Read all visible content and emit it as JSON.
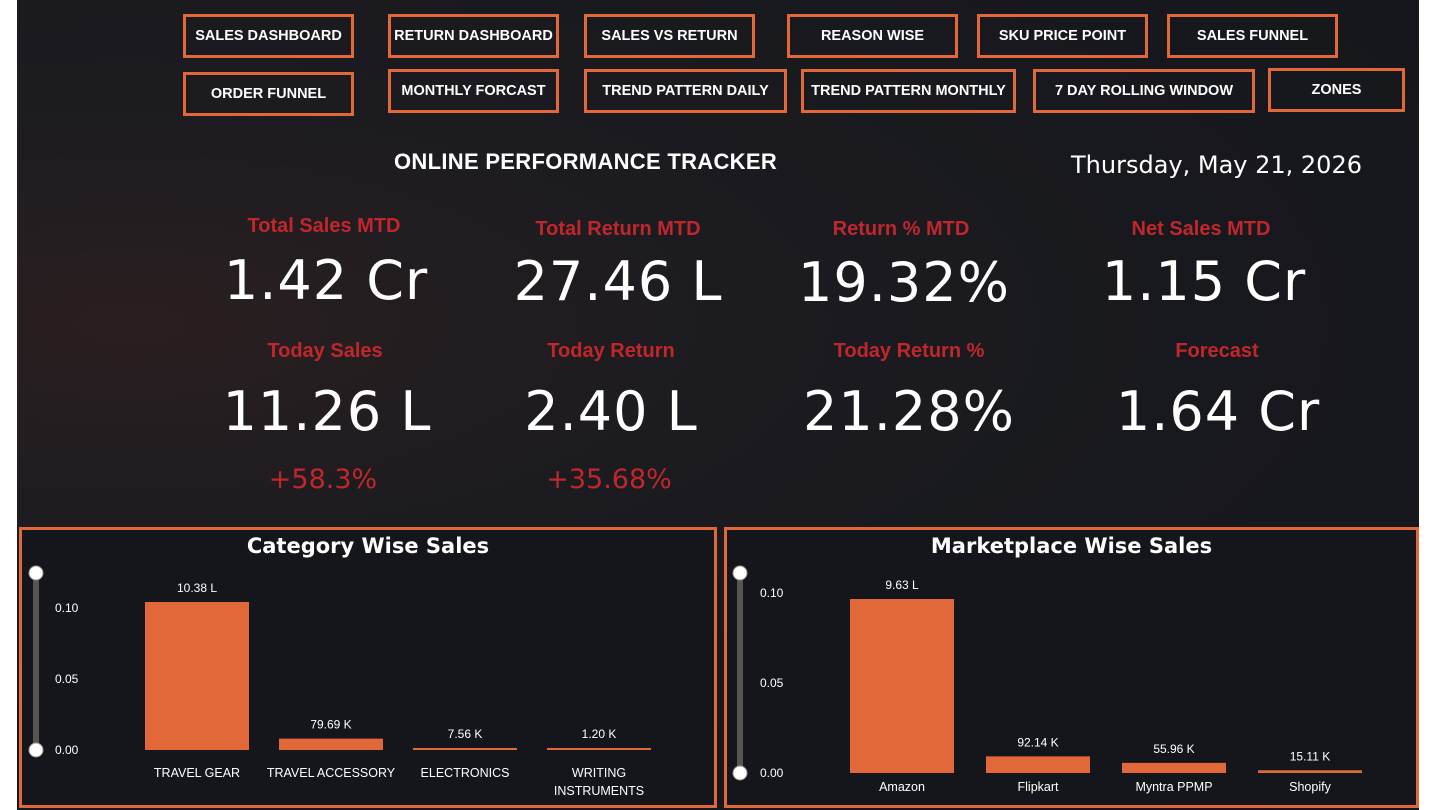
{
  "nav": {
    "row1": [
      "SALES DASHBOARD",
      "RETURN DASHBOARD",
      "SALES VS RETURN",
      "REASON WISE",
      "SKU PRICE POINT",
      "SALES FUNNEL"
    ],
    "row2": [
      "ORDER FUNNEL",
      "MONTHLY FORCAST",
      "TREND PATTERN DAILY",
      "TREND PATTERN MONTHLY",
      "7 DAY ROLLING WINDOW",
      "ZONES"
    ]
  },
  "header": {
    "title": "ONLINE PERFORMANCE TRACKER",
    "date": "Thursday, May 21, 2026"
  },
  "kpis": {
    "total_sales_mtd": {
      "label": "Total Sales MTD",
      "value": "1.42 Cr"
    },
    "total_return_mtd": {
      "label": "Total Return MTD",
      "value": "27.46 L"
    },
    "return_pct_mtd": {
      "label": "Return % MTD",
      "value": "19.32%"
    },
    "net_sales_mtd": {
      "label": "Net Sales MTD",
      "value": "1.15 Cr"
    },
    "today_sales": {
      "label": "Today Sales",
      "value": "11.26 L",
      "delta": "+58.3%"
    },
    "today_return": {
      "label": "Today Return",
      "value": "2.40 L",
      "delta": "+35.68%"
    },
    "today_return_pct": {
      "label": "Today Return %",
      "value": "21.28%"
    },
    "forecast": {
      "label": "Forecast",
      "value": "1.64 Cr"
    }
  },
  "colors": {
    "accent": "#e2683a",
    "kpi_label": "#c0272d",
    "background": "#17181d"
  },
  "chart_data": [
    {
      "type": "bar",
      "title": "Category Wise Sales",
      "categories": [
        "TRAVEL GEAR",
        "TRAVEL ACCESSORY",
        "ELECTRONICS",
        "WRITING INSTRUMENTS"
      ],
      "values": [
        1038000,
        79690,
        7560,
        1200
      ],
      "value_labels": [
        "10.38 L",
        "79.69 K",
        "7.56 K",
        "1.20 K"
      ],
      "y_ticks": [
        "0.00",
        "0.05",
        "0.10"
      ],
      "grid": false
    },
    {
      "type": "bar",
      "title": "Marketplace Wise Sales",
      "categories": [
        "Amazon",
        "Flipkart",
        "Myntra PPMP",
        "Shopify"
      ],
      "values": [
        963000,
        92140,
        55960,
        15110
      ],
      "value_labels": [
        "9.63 L",
        "92.14 K",
        "55.96 K",
        "15.11 K"
      ],
      "y_ticks": [
        "0.00",
        "0.05",
        "0.10"
      ],
      "grid": false
    }
  ]
}
